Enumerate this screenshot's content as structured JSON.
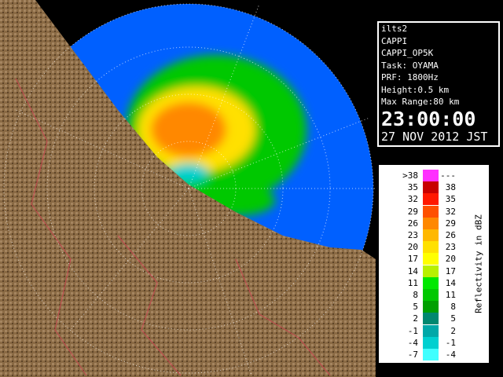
{
  "info": {
    "lines": [
      "ilts2",
      "CAPPI",
      "CAPPI_OP5K",
      "Task: OYAMA",
      "PRF: 1800Hz",
      "Height:0.5 km",
      "Max Range:80 km"
    ],
    "time": "23:00:00",
    "date": "27 NOV 2012 JST"
  },
  "legend": {
    "title": "Reflectivity in dBZ",
    "rows": [
      {
        "low": ">38",
        "high": "---",
        "color": "#ff30ff"
      },
      {
        "low": "35",
        "high": "38",
        "color": "#c80000"
      },
      {
        "low": "32",
        "high": "35",
        "color": "#ff1800"
      },
      {
        "low": "29",
        "high": "32",
        "color": "#ff5000"
      },
      {
        "low": "26",
        "high": "29",
        "color": "#ff8800"
      },
      {
        "low": "23",
        "high": "26",
        "color": "#ffb800"
      },
      {
        "low": "20",
        "high": "23",
        "color": "#ffe000"
      },
      {
        "low": "17",
        "high": "20",
        "color": "#ffff00"
      },
      {
        "low": "14",
        "high": "17",
        "color": "#b8f000"
      },
      {
        "low": "11",
        "high": "14",
        "color": "#00e800"
      },
      {
        "low": "8",
        "high": "11",
        "color": "#00c800"
      },
      {
        "low": "5",
        "high": "8",
        "color": "#00a000"
      },
      {
        "low": "2",
        "high": "5",
        "color": "#008870"
      },
      {
        "low": "-1",
        "high": "2",
        "color": "#00a8a8"
      },
      {
        "low": "-4",
        "high": "-1",
        "color": "#00d0d0"
      },
      {
        "low": "-7",
        "high": "-4",
        "color": "#40ffff"
      }
    ]
  }
}
